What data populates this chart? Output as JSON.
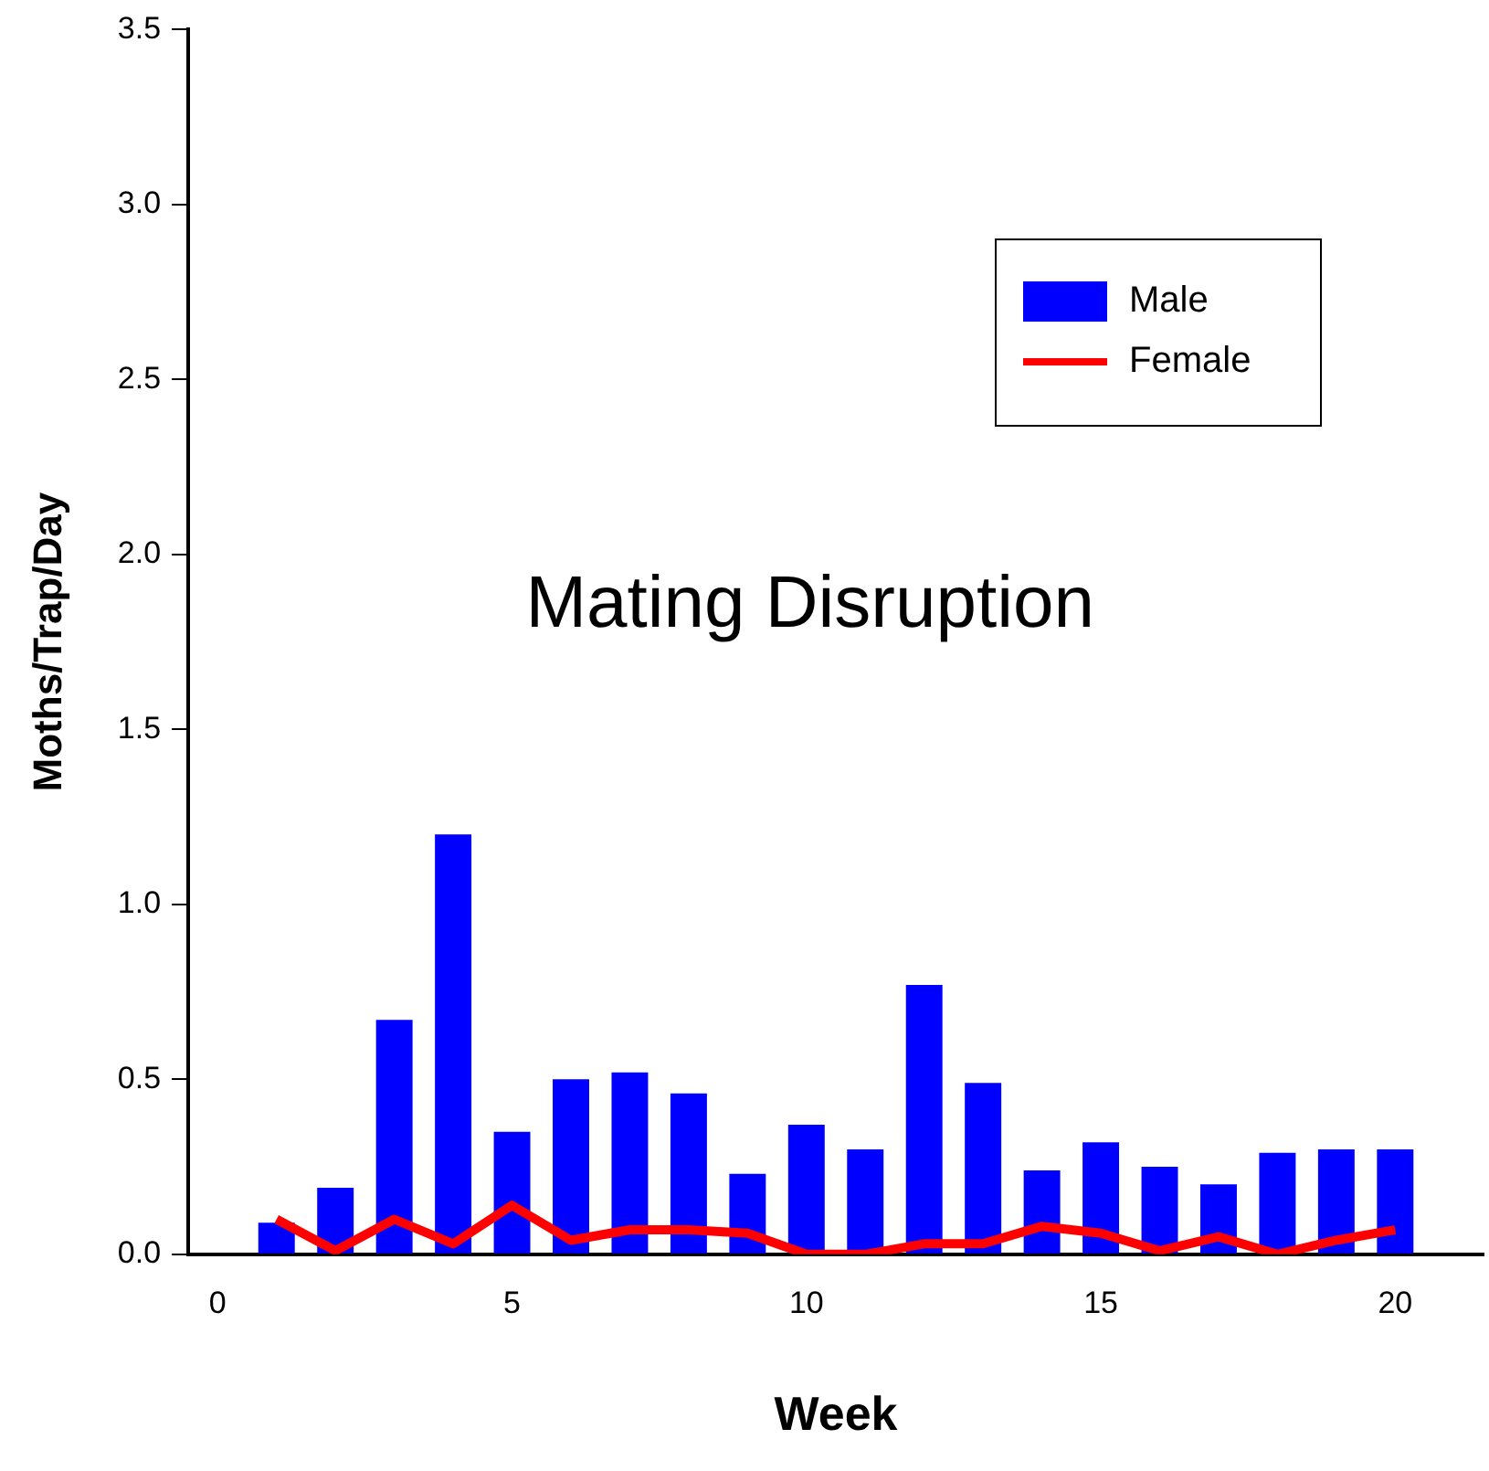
{
  "chart_data": {
    "type": "bar",
    "xlabel": "Week",
    "ylabel": "Moths/Trap/Day",
    "annotations": [
      "Mating Disruption"
    ],
    "x": [
      1,
      2,
      3,
      4,
      5,
      6,
      7,
      8,
      9,
      10,
      11,
      12,
      13,
      14,
      15,
      16,
      17,
      18,
      19,
      20
    ],
    "series": [
      {
        "name": "Male",
        "color": "#0000ff",
        "values": [
          0.09,
          0.19,
          0.67,
          1.2,
          0.35,
          0.5,
          0.52,
          0.46,
          0.23,
          0.37,
          0.3,
          0.77,
          0.49,
          0.24,
          0.32,
          0.25,
          0.2,
          0.29,
          0.3,
          0.3
        ]
      },
      {
        "name": "Female",
        "type": "line",
        "color": "#ff0000",
        "values": [
          0.1,
          0.01,
          0.1,
          0.03,
          0.14,
          0.04,
          0.07,
          0.07,
          0.06,
          0.0,
          0.0,
          0.03,
          0.03,
          0.08,
          0.06,
          0.01,
          0.05,
          0.0,
          0.04,
          0.07
        ]
      }
    ],
    "xlim": [
      -0.5,
      21.5
    ],
    "xticks": [
      0,
      5,
      10,
      15,
      20
    ],
    "ylim": [
      0,
      3.5
    ],
    "yticks": [
      {
        "value": 0,
        "label": "0.0"
      },
      {
        "value": 0.5,
        "label": "0.5"
      },
      {
        "value": 1,
        "label": "1.0"
      },
      {
        "value": 1.5,
        "label": "1.5"
      },
      {
        "value": 2,
        "label": "2.0"
      },
      {
        "value": 2.5,
        "label": "2.5"
      },
      {
        "value": 3,
        "label": "3.0"
      },
      {
        "value": 3.5,
        "label": "3.5"
      }
    ],
    "grid": false,
    "legend": "top right",
    "marker": "none"
  }
}
